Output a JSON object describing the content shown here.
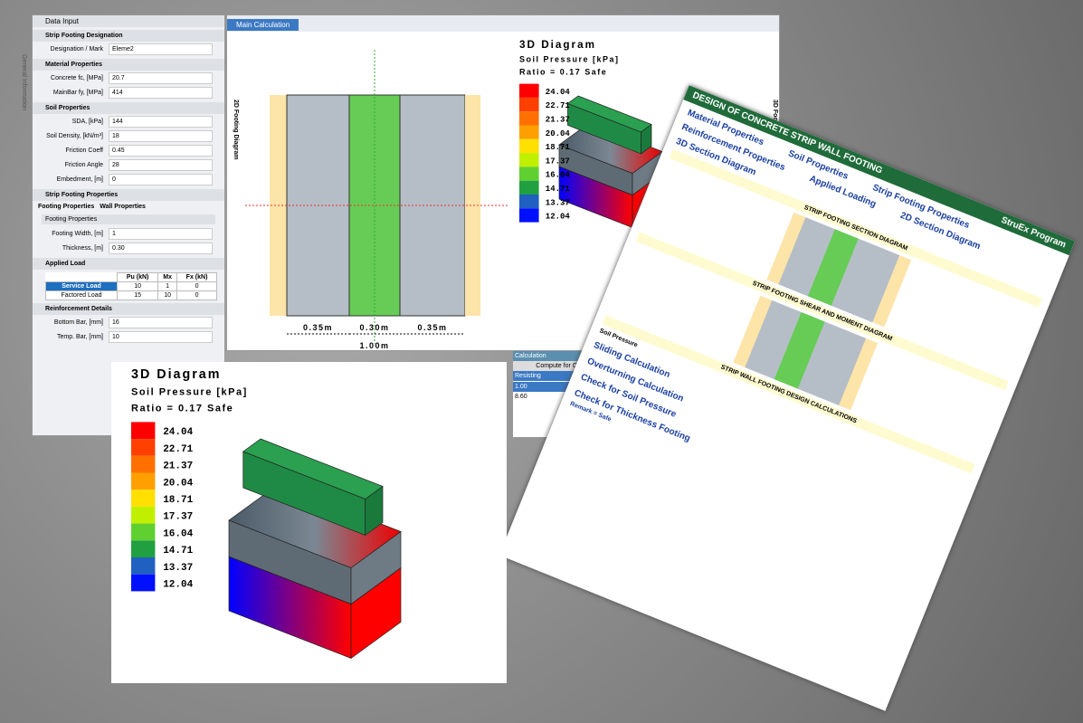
{
  "panel": {
    "title": "Data Input",
    "side_tab": "General Information",
    "sections": [
      {
        "title": "Strip Footing Designation",
        "fields": [
          {
            "label": "Designation / Mark",
            "value": "Eleme2"
          }
        ]
      },
      {
        "title": "Material Properties",
        "fields": [
          {
            "label": "Concrete fc, [MPa]",
            "value": "20.7"
          },
          {
            "label": "MainBar fy, [MPa]",
            "value": "414"
          }
        ]
      },
      {
        "title": "Soil Properties",
        "fields": [
          {
            "label": "SDA, [kPa]",
            "value": "144"
          },
          {
            "label": "Soil Density, [kN/m³]",
            "value": "18"
          },
          {
            "label": "Friction Coeff",
            "value": "0.45"
          },
          {
            "label": "Friction Angle",
            "value": "28"
          },
          {
            "label": "Embedment, [m]",
            "value": "0"
          }
        ]
      }
    ],
    "footing": {
      "title": "Strip Footing Properties",
      "tabs": [
        "Footing Properties",
        "Wall Properties"
      ],
      "group": "Footing Properties",
      "fields": [
        {
          "label": "Footing Width, [m]",
          "value": "1"
        },
        {
          "label": "Thickness, [m]",
          "value": "0.30"
        }
      ]
    },
    "load": {
      "title": "Applied Load",
      "headers": [
        "Pu (kN)",
        "Mx",
        "Fx (kN)"
      ],
      "rows": [
        {
          "name": "Service Load",
          "cells": [
            "10",
            "1",
            "0"
          ]
        },
        {
          "name": "Factored Load",
          "cells": [
            "15",
            "10",
            "0"
          ]
        }
      ]
    },
    "reinforcement": {
      "title": "Reinforcement Details",
      "fields": [
        {
          "label": "Bottom Bar, [mm]",
          "value": "16"
        },
        {
          "label": "Temp. Bar, [mm]",
          "value": "10"
        }
      ]
    }
  },
  "main": {
    "tab": "Main Calculation",
    "side_left": "2D Footing Diagram",
    "side_right": "3D Footing Diagram",
    "dims": [
      "0.35m",
      "0.30m",
      "0.35m"
    ],
    "total": "1.00m"
  },
  "diagram3d": {
    "title": "3D Diagram",
    "subtitle": "Soil Pressure [kPa]",
    "ratio": "Ratio = 0.17 Safe",
    "legend": [
      {
        "label": "24.04",
        "color": "#ff0000"
      },
      {
        "label": "22.71",
        "color": "#ff4000"
      },
      {
        "label": "21.37",
        "color": "#ff7000"
      },
      {
        "label": "20.04",
        "color": "#ffa000"
      },
      {
        "label": "18.71",
        "color": "#ffe000"
      },
      {
        "label": "17.37",
        "color": "#c0f000"
      },
      {
        "label": "16.04",
        "color": "#60d030"
      },
      {
        "label": "14.71",
        "color": "#20a040"
      },
      {
        "label": "13.37",
        "color": "#2060c0"
      },
      {
        "label": "12.04",
        "color": "#0010ff"
      }
    ]
  },
  "calc": {
    "title": "Calculation",
    "header": "Compute for Ov",
    "col": "Resisting",
    "cells": [
      "1.00",
      "8.60"
    ]
  },
  "report": {
    "title": "DESIGN OF CONCRETE STRIP WALL FOOTING",
    "brand": "StruEx Program",
    "headings": [
      "Material Properties",
      "Soil Properties",
      "Strip Footing Properties",
      "Reinforcement Properties",
      "Applied Loading",
      "2D Section Diagram",
      "3D Section Diagram"
    ],
    "bands": [
      "STRIP FOOTING SECTION DIAGRAM",
      "STRIP FOOTING SHEAR AND MOMENT DIAGRAM",
      "STRIP WALL FOOTING DESIGN CALCULATIONS"
    ],
    "legend_title": "Soil Pressure",
    "checks": [
      "Sliding Calculation",
      "Overturning Calculation",
      "Check for Soil Pressure",
      "Check for Thickness Footing"
    ],
    "remark": "Remark = Safe"
  }
}
